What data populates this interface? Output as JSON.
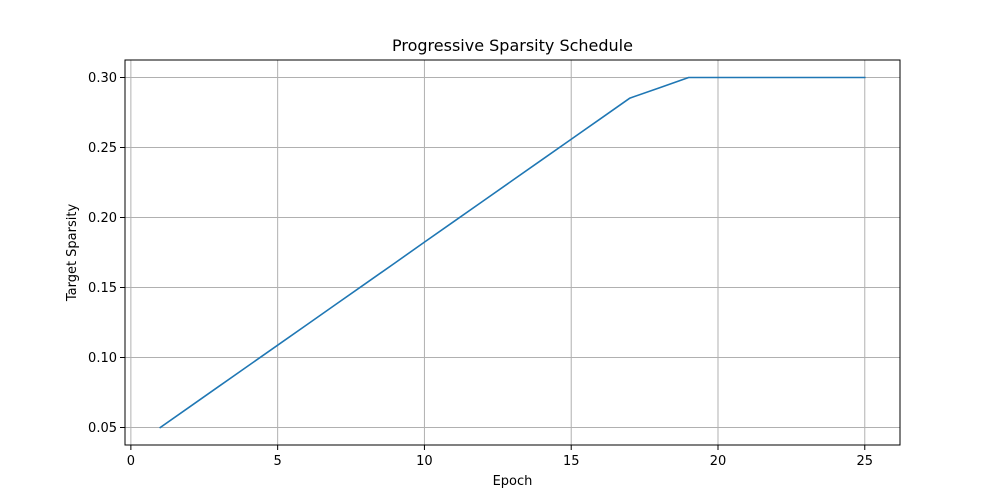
{
  "chart_data": {
    "type": "line",
    "title": "Progressive Sparsity Schedule",
    "xlabel": "Epoch",
    "ylabel": "Target Sparsity",
    "xlim": [
      -0.2,
      26.2
    ],
    "ylim": [
      0.0375,
      0.3125
    ],
    "xticks": [
      0,
      5,
      10,
      15,
      20,
      25
    ],
    "yticks": [
      0.05,
      0.1,
      0.15,
      0.2,
      0.25,
      0.3
    ],
    "xtick_labels": [
      "0",
      "5",
      "10",
      "15",
      "20",
      "25"
    ],
    "ytick_labels": [
      "0.05",
      "0.10",
      "0.15",
      "0.20",
      "0.25",
      "0.30"
    ],
    "grid": true,
    "series": [
      {
        "color": "#1f77b4",
        "x": [
          1,
          2,
          3,
          4,
          5,
          6,
          7,
          8,
          9,
          10,
          11,
          12,
          13,
          14,
          15,
          16,
          17,
          18,
          19,
          20,
          21,
          22,
          23,
          24,
          25
        ],
        "y": [
          0.05,
          0.0647,
          0.0794,
          0.0941,
          0.1088,
          0.1235,
          0.1382,
          0.1529,
          0.1676,
          0.1824,
          0.1971,
          0.2118,
          0.2265,
          0.2412,
          0.2559,
          0.2706,
          0.2853,
          0.2926,
          0.3,
          0.3,
          0.3,
          0.3,
          0.3,
          0.3,
          0.3
        ]
      }
    ]
  }
}
